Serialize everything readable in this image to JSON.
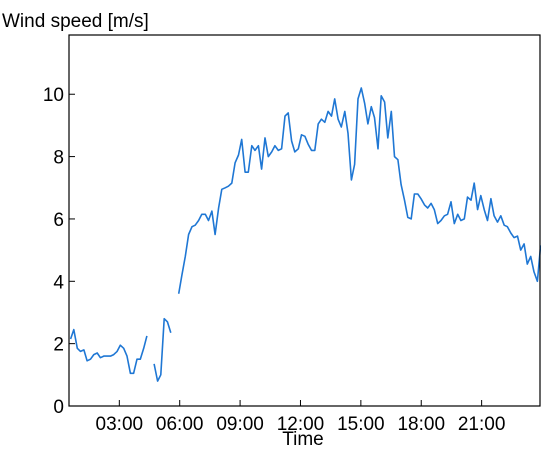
{
  "chart_data": {
    "type": "line",
    "title": "",
    "ylabel": "Wind speed [m/s]",
    "xlabel": "Time",
    "x_unit": "hours",
    "xlim": [
      0.5,
      23.9
    ],
    "ylim": [
      0,
      11.9
    ],
    "x_ticks": [
      {
        "value": 3,
        "label": "03:00"
      },
      {
        "value": 6,
        "label": "06:00"
      },
      {
        "value": 9,
        "label": "09:00"
      },
      {
        "value": 12,
        "label": "12:00"
      },
      {
        "value": 15,
        "label": "15:00"
      },
      {
        "value": 18,
        "label": "18:00"
      },
      {
        "value": 21,
        "label": "21:00"
      }
    ],
    "y_ticks": [
      {
        "value": 0,
        "label": "0"
      },
      {
        "value": 2,
        "label": "2"
      },
      {
        "value": 4,
        "label": "4"
      },
      {
        "value": 6,
        "label": "6"
      },
      {
        "value": 8,
        "label": "8"
      },
      {
        "value": 10,
        "label": "10"
      }
    ],
    "grid": false,
    "line_color": "#1f77d4",
    "series": [
      {
        "segments": [
          [
            [
              0.58,
              2.15
            ],
            [
              0.74,
              2.45
            ],
            [
              0.91,
              1.85
            ],
            [
              1.07,
              1.75
            ],
            [
              1.24,
              1.8
            ],
            [
              1.4,
              1.45
            ],
            [
              1.57,
              1.5
            ],
            [
              1.73,
              1.65
            ],
            [
              1.9,
              1.7
            ],
            [
              2.06,
              1.55
            ],
            [
              2.23,
              1.6
            ],
            [
              2.39,
              1.6
            ],
            [
              2.56,
              1.6
            ],
            [
              2.72,
              1.65
            ],
            [
              2.89,
              1.75
            ],
            [
              3.05,
              1.95
            ],
            [
              3.22,
              1.85
            ],
            [
              3.38,
              1.6
            ],
            [
              3.55,
              1.05
            ],
            [
              3.71,
              1.05
            ],
            [
              3.88,
              1.5
            ],
            [
              4.04,
              1.5
            ],
            [
              4.21,
              1.85
            ],
            [
              4.37,
              2.25
            ]
          ],
          [
            [
              4.73,
              1.35
            ],
            [
              4.9,
              0.8
            ],
            [
              5.06,
              1.0
            ],
            [
              5.23,
              2.8
            ],
            [
              5.39,
              2.7
            ],
            [
              5.56,
              2.35
            ]
          ],
          [
            [
              5.95,
              3.6
            ],
            [
              6.11,
              4.2
            ],
            [
              6.28,
              4.8
            ],
            [
              6.44,
              5.5
            ],
            [
              6.61,
              5.75
            ],
            [
              6.77,
              5.8
            ],
            [
              6.94,
              5.95
            ],
            [
              7.1,
              6.15
            ],
            [
              7.27,
              6.15
            ],
            [
              7.43,
              5.95
            ],
            [
              7.6,
              6.25
            ],
            [
              7.76,
              5.5
            ],
            [
              7.93,
              6.35
            ],
            [
              8.09,
              6.95
            ],
            [
              8.26,
              7.0
            ],
            [
              8.42,
              7.05
            ],
            [
              8.59,
              7.15
            ],
            [
              8.75,
              7.8
            ],
            [
              8.92,
              8.05
            ],
            [
              9.08,
              8.55
            ],
            [
              9.25,
              7.5
            ],
            [
              9.41,
              7.5
            ],
            [
              9.58,
              8.35
            ],
            [
              9.74,
              8.2
            ],
            [
              9.91,
              8.35
            ],
            [
              10.07,
              7.6
            ],
            [
              10.24,
              8.6
            ],
            [
              10.4,
              8.0
            ],
            [
              10.57,
              8.15
            ],
            [
              10.73,
              8.35
            ],
            [
              10.9,
              8.2
            ],
            [
              11.06,
              8.25
            ],
            [
              11.23,
              9.3
            ],
            [
              11.39,
              9.4
            ],
            [
              11.56,
              8.5
            ],
            [
              11.72,
              8.15
            ],
            [
              11.89,
              8.25
            ],
            [
              12.05,
              8.7
            ],
            [
              12.22,
              8.65
            ],
            [
              12.38,
              8.4
            ],
            [
              12.55,
              8.2
            ],
            [
              12.71,
              8.2
            ],
            [
              12.88,
              9.05
            ],
            [
              13.04,
              9.2
            ],
            [
              13.21,
              9.1
            ],
            [
              13.37,
              9.45
            ],
            [
              13.54,
              9.3
            ],
            [
              13.7,
              9.85
            ],
            [
              13.87,
              9.2
            ],
            [
              14.03,
              8.95
            ],
            [
              14.2,
              9.45
            ],
            [
              14.36,
              8.75
            ],
            [
              14.53,
              7.25
            ],
            [
              14.69,
              7.75
            ],
            [
              14.86,
              9.85
            ],
            [
              15.02,
              10.2
            ],
            [
              15.19,
              9.7
            ],
            [
              15.35,
              9.05
            ],
            [
              15.52,
              9.6
            ],
            [
              15.68,
              9.25
            ],
            [
              15.85,
              8.25
            ],
            [
              16.01,
              9.95
            ],
            [
              16.18,
              9.75
            ],
            [
              16.34,
              8.6
            ],
            [
              16.51,
              9.45
            ],
            [
              16.67,
              8.0
            ],
            [
              16.84,
              7.9
            ],
            [
              17.0,
              7.1
            ],
            [
              17.17,
              6.6
            ],
            [
              17.33,
              6.05
            ],
            [
              17.5,
              6.0
            ],
            [
              17.66,
              6.8
            ],
            [
              17.83,
              6.8
            ],
            [
              17.99,
              6.65
            ],
            [
              18.16,
              6.45
            ],
            [
              18.32,
              6.35
            ],
            [
              18.49,
              6.5
            ],
            [
              18.65,
              6.3
            ],
            [
              18.82,
              5.85
            ],
            [
              18.98,
              5.95
            ],
            [
              19.15,
              6.1
            ],
            [
              19.31,
              6.15
            ],
            [
              19.48,
              6.55
            ],
            [
              19.64,
              5.85
            ],
            [
              19.81,
              6.15
            ],
            [
              19.97,
              5.95
            ],
            [
              20.14,
              6.0
            ],
            [
              20.3,
              6.7
            ],
            [
              20.47,
              6.6
            ],
            [
              20.63,
              7.15
            ],
            [
              20.8,
              6.3
            ],
            [
              20.96,
              6.75
            ],
            [
              21.13,
              6.3
            ],
            [
              21.29,
              5.95
            ],
            [
              21.46,
              6.65
            ],
            [
              21.62,
              6.1
            ],
            [
              21.79,
              5.9
            ],
            [
              21.95,
              6.1
            ],
            [
              22.12,
              5.8
            ],
            [
              22.28,
              5.75
            ],
            [
              22.45,
              5.55
            ],
            [
              22.61,
              5.4
            ],
            [
              22.78,
              5.45
            ],
            [
              22.94,
              5.0
            ],
            [
              23.11,
              5.2
            ],
            [
              23.27,
              4.55
            ],
            [
              23.44,
              4.8
            ],
            [
              23.6,
              4.3
            ],
            [
              23.77,
              4.0
            ],
            [
              23.93,
              5.15
            ]
          ]
        ]
      }
    ]
  }
}
